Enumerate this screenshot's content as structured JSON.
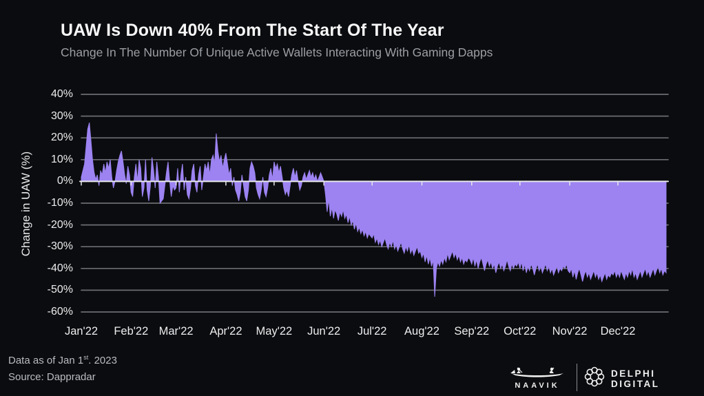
{
  "header": {
    "title": "UAW Is Down 40% From The Start Of The Year",
    "subtitle": "Change In The Number Of Unique Active Wallets Interacting With Gaming Dapps"
  },
  "footer": {
    "note_pre": "Data as of Jan 1",
    "note_sup": "st",
    "note_post": ". 2023",
    "source": "Source: Dappradar",
    "naavik_label": "NAAVIK",
    "delphi_label": "DELPHI DIGITAL"
  },
  "colors": {
    "background": "#0b0c0f",
    "area_fill": "#9c83f1",
    "gridline": "#7d7f85",
    "zero_line": "#e7e8ea",
    "tick_text": "#ededee"
  },
  "chart_data": {
    "type": "area",
    "title": "UAW Is Down 40% From The Start Of The Year",
    "xlabel": "",
    "ylabel": "Change in UAW (%)",
    "legend": "none",
    "grid": "horizontal",
    "baseline": 0,
    "ylim": [
      -60,
      40
    ],
    "y_ticks": [
      40,
      30,
      20,
      10,
      0,
      -10,
      -20,
      -30,
      -40,
      -50,
      -60
    ],
    "y_tick_suffix": "%",
    "x_tick_labels": [
      "Jan'22",
      "Feb'22",
      "Mar'22",
      "Apr'22",
      "May'22",
      "Jun'22",
      "Jul'22",
      "Aug'22",
      "Sep'22",
      "Oct'22",
      "Nov'22",
      "Dec'22"
    ],
    "x_tick_days": [
      1,
      32,
      60,
      91,
      121,
      152,
      182,
      213,
      244,
      274,
      305,
      335
    ],
    "x_range_days": [
      1,
      365
    ],
    "points": [
      [
        1,
        2
      ],
      [
        3,
        8
      ],
      [
        5,
        24
      ],
      [
        6,
        27
      ],
      [
        7,
        19
      ],
      [
        8,
        10
      ],
      [
        9,
        4
      ],
      [
        10,
        1
      ],
      [
        11,
        3
      ],
      [
        12,
        -2
      ],
      [
        13,
        5
      ],
      [
        14,
        3
      ],
      [
        15,
        8
      ],
      [
        16,
        4
      ],
      [
        17,
        9
      ],
      [
        18,
        6
      ],
      [
        19,
        10
      ],
      [
        20,
        2
      ],
      [
        21,
        -3
      ],
      [
        22,
        0
      ],
      [
        23,
        5
      ],
      [
        24,
        9
      ],
      [
        25,
        12
      ],
      [
        26,
        14
      ],
      [
        27,
        9
      ],
      [
        28,
        3
      ],
      [
        29,
        -1
      ],
      [
        30,
        7
      ],
      [
        31,
        3
      ],
      [
        32,
        -5
      ],
      [
        33,
        -7
      ],
      [
        34,
        2
      ],
      [
        35,
        8
      ],
      [
        36,
        0
      ],
      [
        37,
        10
      ],
      [
        38,
        6
      ],
      [
        39,
        -7
      ],
      [
        40,
        -3
      ],
      [
        41,
        10
      ],
      [
        42,
        -4
      ],
      [
        43,
        -9
      ],
      [
        44,
        -2
      ],
      [
        45,
        11
      ],
      [
        46,
        5
      ],
      [
        47,
        -3
      ],
      [
        48,
        9
      ],
      [
        49,
        2
      ],
      [
        50,
        -10
      ],
      [
        52,
        -8
      ],
      [
        54,
        4
      ],
      [
        55,
        9
      ],
      [
        56,
        0
      ],
      [
        57,
        -7
      ],
      [
        58,
        -2
      ],
      [
        59,
        -4
      ],
      [
        60,
        -3
      ],
      [
        61,
        6
      ],
      [
        62,
        -5
      ],
      [
        63,
        3
      ],
      [
        64,
        8
      ],
      [
        65,
        -4
      ],
      [
        66,
        2
      ],
      [
        67,
        -6
      ],
      [
        68,
        -8
      ],
      [
        69,
        -3
      ],
      [
        70,
        5
      ],
      [
        71,
        8
      ],
      [
        72,
        -2
      ],
      [
        73,
        -5
      ],
      [
        74,
        3
      ],
      [
        75,
        7
      ],
      [
        76,
        -4
      ],
      [
        77,
        2
      ],
      [
        78,
        8
      ],
      [
        79,
        5
      ],
      [
        80,
        9
      ],
      [
        81,
        3
      ],
      [
        82,
        10
      ],
      [
        83,
        12
      ],
      [
        84,
        8
      ],
      [
        85,
        22
      ],
      [
        86,
        14
      ],
      [
        87,
        9
      ],
      [
        88,
        12
      ],
      [
        89,
        6
      ],
      [
        90,
        10
      ],
      [
        91,
        13
      ],
      [
        92,
        8
      ],
      [
        93,
        3
      ],
      [
        94,
        6
      ],
      [
        95,
        -2
      ],
      [
        96,
        2
      ],
      [
        97,
        -4
      ],
      [
        98,
        -6
      ],
      [
        99,
        -9
      ],
      [
        100,
        -5
      ],
      [
        101,
        3
      ],
      [
        102,
        -2
      ],
      [
        103,
        -7
      ],
      [
        104,
        -9
      ],
      [
        105,
        -4
      ],
      [
        106,
        6
      ],
      [
        107,
        9
      ],
      [
        108,
        7
      ],
      [
        109,
        4
      ],
      [
        110,
        -3
      ],
      [
        111,
        -6
      ],
      [
        112,
        -8
      ],
      [
        113,
        -4
      ],
      [
        114,
        2
      ],
      [
        115,
        -5
      ],
      [
        116,
        -7
      ],
      [
        117,
        -3
      ],
      [
        118,
        3
      ],
      [
        119,
        6
      ],
      [
        120,
        1
      ],
      [
        121,
        9
      ],
      [
        122,
        6
      ],
      [
        123,
        8
      ],
      [
        124,
        4
      ],
      [
        125,
        7
      ],
      [
        126,
        2
      ],
      [
        127,
        -3
      ],
      [
        128,
        -6
      ],
      [
        129,
        -4
      ],
      [
        130,
        -7
      ],
      [
        131,
        -2
      ],
      [
        132,
        3
      ],
      [
        133,
        6
      ],
      [
        134,
        2
      ],
      [
        135,
        5
      ],
      [
        136,
        0
      ],
      [
        137,
        -4
      ],
      [
        138,
        -2
      ],
      [
        139,
        2
      ],
      [
        140,
        4
      ],
      [
        141,
        1
      ],
      [
        142,
        3
      ],
      [
        143,
        5
      ],
      [
        144,
        2
      ],
      [
        145,
        4
      ],
      [
        146,
        1
      ],
      [
        147,
        3
      ],
      [
        148,
        0
      ],
      [
        149,
        2
      ],
      [
        150,
        4
      ],
      [
        151,
        2
      ],
      [
        152,
        0
      ],
      [
        153,
        -6
      ],
      [
        154,
        -14
      ],
      [
        155,
        -8
      ],
      [
        156,
        -16
      ],
      [
        157,
        -12
      ],
      [
        158,
        -17
      ],
      [
        159,
        -13
      ],
      [
        160,
        -15
      ],
      [
        161,
        -18
      ],
      [
        162,
        -14
      ],
      [
        163,
        -16
      ],
      [
        164,
        -13
      ],
      [
        165,
        -17
      ],
      [
        166,
        -15
      ],
      [
        167,
        -19
      ],
      [
        168,
        -16
      ],
      [
        169,
        -20
      ],
      [
        170,
        -18
      ],
      [
        171,
        -22
      ],
      [
        172,
        -19
      ],
      [
        173,
        -23
      ],
      [
        174,
        -21
      ],
      [
        175,
        -24
      ],
      [
        176,
        -22
      ],
      [
        177,
        -25
      ],
      [
        178,
        -23
      ],
      [
        179,
        -26
      ],
      [
        180,
        -24
      ],
      [
        181,
        -25
      ],
      [
        182,
        -26
      ],
      [
        183,
        -24
      ],
      [
        184,
        -28
      ],
      [
        185,
        -26
      ],
      [
        186,
        -29
      ],
      [
        187,
        -27
      ],
      [
        188,
        -30
      ],
      [
        189,
        -28
      ],
      [
        190,
        -26
      ],
      [
        191,
        -29
      ],
      [
        192,
        -31
      ],
      [
        193,
        -28
      ],
      [
        194,
        -30
      ],
      [
        195,
        -27
      ],
      [
        196,
        -31
      ],
      [
        197,
        -29
      ],
      [
        198,
        -32
      ],
      [
        199,
        -30
      ],
      [
        200,
        -28
      ],
      [
        201,
        -31
      ],
      [
        202,
        -33
      ],
      [
        203,
        -30
      ],
      [
        204,
        -32
      ],
      [
        205,
        -29
      ],
      [
        206,
        -33
      ],
      [
        207,
        -31
      ],
      [
        208,
        -34
      ],
      [
        209,
        -32
      ],
      [
        210,
        -30
      ],
      [
        211,
        -33
      ],
      [
        212,
        -32
      ],
      [
        213,
        -35
      ],
      [
        214,
        -33
      ],
      [
        215,
        -37
      ],
      [
        216,
        -34
      ],
      [
        217,
        -38
      ],
      [
        218,
        -35
      ],
      [
        219,
        -39
      ],
      [
        220,
        -36
      ],
      [
        221,
        -53
      ],
      [
        222,
        -40
      ],
      [
        223,
        -37
      ],
      [
        224,
        -39
      ],
      [
        225,
        -36
      ],
      [
        226,
        -38
      ],
      [
        227,
        -35
      ],
      [
        228,
        -37
      ],
      [
        229,
        -33
      ],
      [
        230,
        -36
      ],
      [
        231,
        -34
      ],
      [
        232,
        -32
      ],
      [
        233,
        -35
      ],
      [
        234,
        -33
      ],
      [
        235,
        -36
      ],
      [
        236,
        -34
      ],
      [
        237,
        -37
      ],
      [
        238,
        -35
      ],
      [
        239,
        -38
      ],
      [
        240,
        -36
      ],
      [
        241,
        -37
      ],
      [
        242,
        -35
      ],
      [
        243,
        -36
      ],
      [
        244,
        -38
      ],
      [
        245,
        -35
      ],
      [
        246,
        -39
      ],
      [
        247,
        -36
      ],
      [
        248,
        -40
      ],
      [
        249,
        -37
      ],
      [
        250,
        -35
      ],
      [
        251,
        -38
      ],
      [
        252,
        -41
      ],
      [
        253,
        -38
      ],
      [
        254,
        -36
      ],
      [
        255,
        -39
      ],
      [
        256,
        -37
      ],
      [
        257,
        -40
      ],
      [
        258,
        -38
      ],
      [
        259,
        -42
      ],
      [
        260,
        -39
      ],
      [
        261,
        -37
      ],
      [
        262,
        -40
      ],
      [
        263,
        -38
      ],
      [
        264,
        -41
      ],
      [
        265,
        -39
      ],
      [
        266,
        -36
      ],
      [
        267,
        -39
      ],
      [
        268,
        -41
      ],
      [
        269,
        -38
      ],
      [
        270,
        -40
      ],
      [
        271,
        -38
      ],
      [
        272,
        -39
      ],
      [
        273,
        -37
      ],
      [
        274,
        -40
      ],
      [
        275,
        -37
      ],
      [
        276,
        -41
      ],
      [
        277,
        -38
      ],
      [
        278,
        -42
      ],
      [
        279,
        -39
      ],
      [
        280,
        -41
      ],
      [
        281,
        -38
      ],
      [
        282,
        -40
      ],
      [
        283,
        -43
      ],
      [
        284,
        -40
      ],
      [
        285,
        -38
      ],
      [
        286,
        -41
      ],
      [
        287,
        -39
      ],
      [
        288,
        -42
      ],
      [
        289,
        -40
      ],
      [
        290,
        -38
      ],
      [
        291,
        -41
      ],
      [
        292,
        -39
      ],
      [
        293,
        -42
      ],
      [
        294,
        -40
      ],
      [
        295,
        -43
      ],
      [
        296,
        -41
      ],
      [
        297,
        -39
      ],
      [
        298,
        -42
      ],
      [
        299,
        -40
      ],
      [
        300,
        -41
      ],
      [
        301,
        -39
      ],
      [
        302,
        -40
      ],
      [
        303,
        -38
      ],
      [
        304,
        -41
      ],
      [
        305,
        -42
      ],
      [
        306,
        -40
      ],
      [
        307,
        -44
      ],
      [
        308,
        -41
      ],
      [
        309,
        -45
      ],
      [
        310,
        -42
      ],
      [
        311,
        -40
      ],
      [
        312,
        -43
      ],
      [
        313,
        -46
      ],
      [
        314,
        -43
      ],
      [
        315,
        -41
      ],
      [
        316,
        -44
      ],
      [
        317,
        -42
      ],
      [
        318,
        -45
      ],
      [
        319,
        -43
      ],
      [
        320,
        -41
      ],
      [
        321,
        -44
      ],
      [
        322,
        -42
      ],
      [
        323,
        -45
      ],
      [
        324,
        -43
      ],
      [
        325,
        -46
      ],
      [
        326,
        -44
      ],
      [
        327,
        -42
      ],
      [
        328,
        -45
      ],
      [
        329,
        -43
      ],
      [
        330,
        -44
      ],
      [
        331,
        -42
      ],
      [
        332,
        -43
      ],
      [
        333,
        -41
      ],
      [
        334,
        -44
      ],
      [
        335,
        -42
      ],
      [
        336,
        -44
      ],
      [
        337,
        -41
      ],
      [
        338,
        -43
      ],
      [
        339,
        -45
      ],
      [
        340,
        -42
      ],
      [
        341,
        -44
      ],
      [
        342,
        -41
      ],
      [
        343,
        -43
      ],
      [
        344,
        -40
      ],
      [
        345,
        -44
      ],
      [
        346,
        -42
      ],
      [
        347,
        -45
      ],
      [
        348,
        -43
      ],
      [
        349,
        -41
      ],
      [
        350,
        -44
      ],
      [
        351,
        -42
      ],
      [
        352,
        -40
      ],
      [
        353,
        -43
      ],
      [
        354,
        -41
      ],
      [
        355,
        -44
      ],
      [
        356,
        -42
      ],
      [
        357,
        -40
      ],
      [
        358,
        -43
      ],
      [
        359,
        -41
      ],
      [
        360,
        -39
      ],
      [
        361,
        -42
      ],
      [
        362,
        -40
      ],
      [
        363,
        -43
      ],
      [
        364,
        -41
      ],
      [
        365,
        -42
      ]
    ]
  }
}
